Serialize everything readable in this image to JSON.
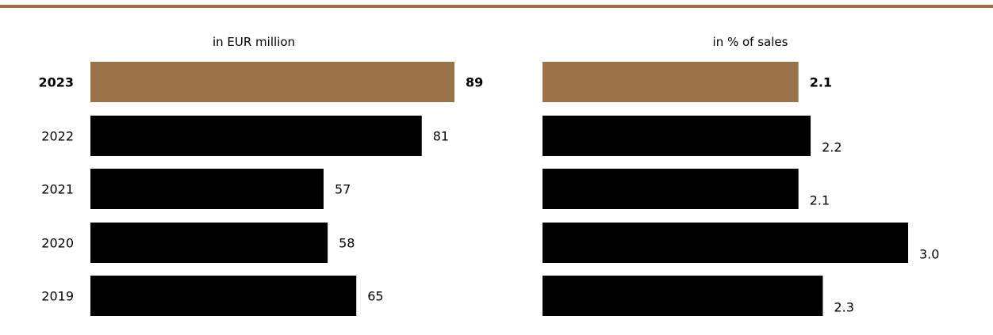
{
  "colors": {
    "highlight": "#99734a",
    "default": "#000000",
    "top_rule": "#99734a"
  },
  "chart_data": [
    {
      "type": "bar",
      "orientation": "horizontal",
      "title": "in EUR million",
      "categories": [
        "2023",
        "2022",
        "2021",
        "2020",
        "2019"
      ],
      "values": [
        89,
        81,
        57,
        58,
        65
      ],
      "value_labels": [
        "89",
        "81",
        "57",
        "58",
        "65"
      ],
      "highlight_index": 0,
      "xlim": [
        0,
        89
      ]
    },
    {
      "type": "bar",
      "orientation": "horizontal",
      "title": "in % of sales",
      "categories": [
        "2023",
        "2022",
        "2021",
        "2020",
        "2019"
      ],
      "values": [
        2.1,
        2.2,
        2.1,
        3.0,
        2.3
      ],
      "value_labels": [
        "2.1",
        "2.2",
        "2.1",
        "3.0",
        "2.3"
      ],
      "highlight_index": 0,
      "xlim": [
        0,
        3.0
      ]
    }
  ]
}
